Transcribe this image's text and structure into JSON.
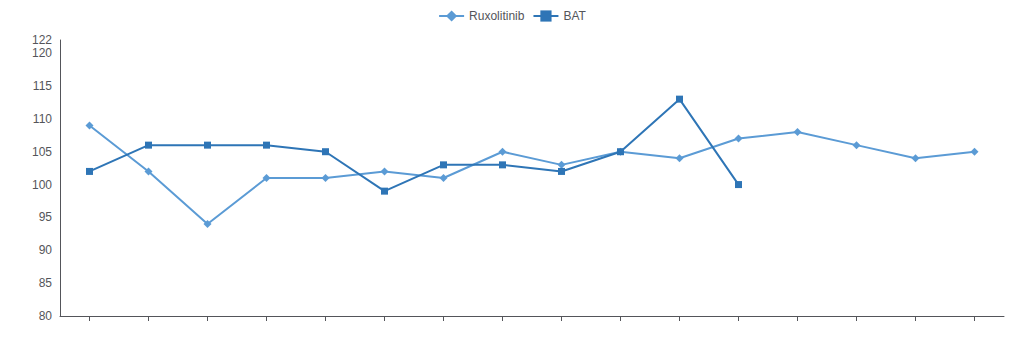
{
  "chart_data": {
    "type": "line",
    "categories": [
      null,
      null,
      null,
      null,
      null,
      null,
      null,
      null,
      null,
      null,
      null,
      null,
      null,
      null,
      null,
      null
    ],
    "series": [
      {
        "name": "Ruxolitinib",
        "color": "#5B9BD5",
        "marker": "diamond",
        "values": [
          109,
          102,
          94,
          101,
          101,
          102,
          101,
          105,
          103,
          105,
          104,
          107,
          108,
          106,
          104,
          105
        ]
      },
      {
        "name": "BAT",
        "color": "#2E75B6",
        "marker": "square",
        "values": [
          102,
          106,
          106,
          106,
          105,
          99,
          103,
          103,
          102,
          105,
          113,
          100,
          null,
          null,
          null,
          null
        ]
      }
    ],
    "ylim": [
      80,
      122
    ],
    "yticks": [
      80,
      85,
      90,
      95,
      100,
      105,
      110,
      115,
      120
    ],
    "grid": false,
    "legend": "top",
    "tick_labels": "y"
  }
}
